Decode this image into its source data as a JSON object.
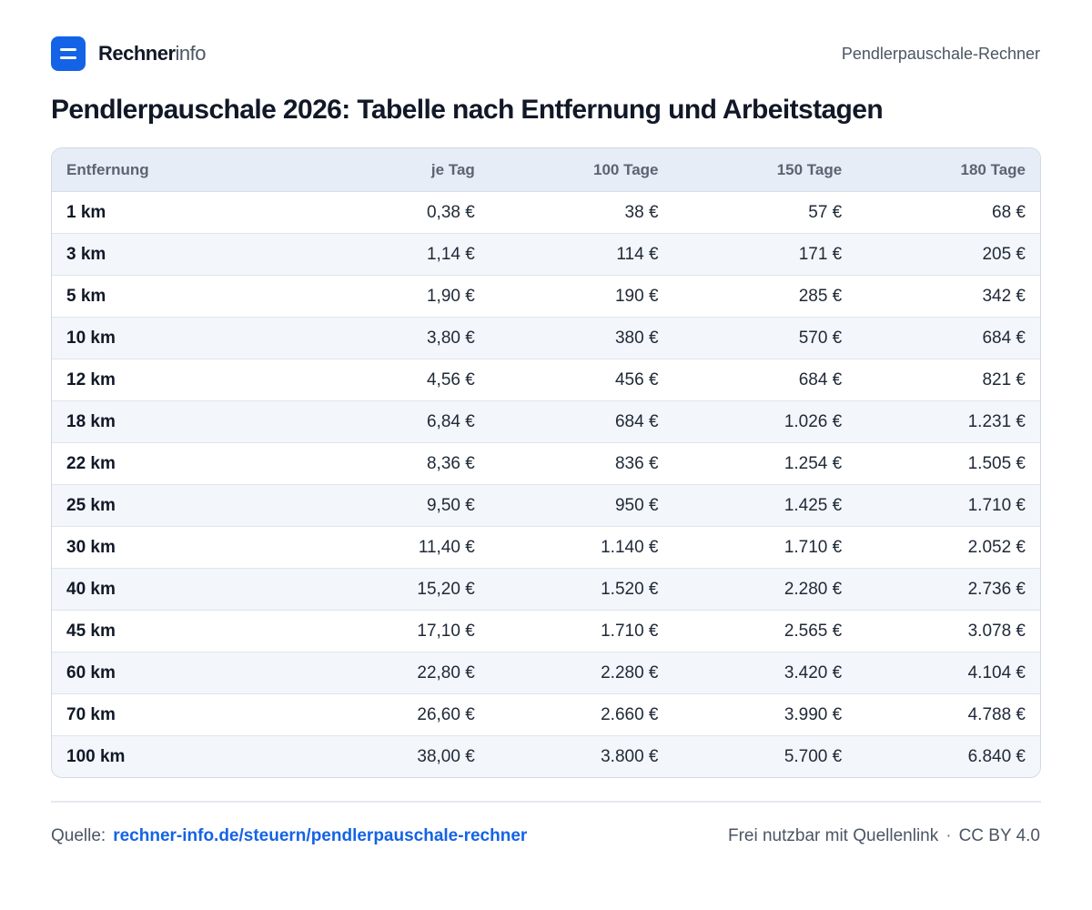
{
  "brand": {
    "name_strong": "Rechner",
    "name_light": "info"
  },
  "header": {
    "right_text": "Pendlerpauschale-Rechner"
  },
  "title": "Pendlerpauschale 2026: Tabelle nach Entfernung und Arbeitstagen",
  "table": {
    "columns": [
      "Entfernung",
      "je Tag",
      "100 Tage",
      "150 Tage",
      "180 Tage"
    ],
    "rows": [
      [
        "1 km",
        "0,38 €",
        "38 €",
        "57 €",
        "68 €"
      ],
      [
        "3 km",
        "1,14 €",
        "114 €",
        "171 €",
        "205 €"
      ],
      [
        "5 km",
        "1,90 €",
        "190 €",
        "285 €",
        "342 €"
      ],
      [
        "10 km",
        "3,80 €",
        "380 €",
        "570 €",
        "684 €"
      ],
      [
        "12 km",
        "4,56 €",
        "456 €",
        "684 €",
        "821 €"
      ],
      [
        "18 km",
        "6,84 €",
        "684 €",
        "1.026 €",
        "1.231 €"
      ],
      [
        "22 km",
        "8,36 €",
        "836 €",
        "1.254 €",
        "1.505 €"
      ],
      [
        "25 km",
        "9,50 €",
        "950 €",
        "1.425 €",
        "1.710 €"
      ],
      [
        "30 km",
        "11,40 €",
        "1.140 €",
        "1.710 €",
        "2.052 €"
      ],
      [
        "40 km",
        "15,20 €",
        "1.520 €",
        "2.280 €",
        "2.736 €"
      ],
      [
        "45 km",
        "17,10 €",
        "1.710 €",
        "2.565 €",
        "3.078 €"
      ],
      [
        "60 km",
        "22,80 €",
        "2.280 €",
        "3.420 €",
        "4.104 €"
      ],
      [
        "70 km",
        "26,60 €",
        "2.660 €",
        "3.990 €",
        "4.788 €"
      ],
      [
        "100 km",
        "38,00 €",
        "3.800 €",
        "5.700 €",
        "6.840 €"
      ]
    ]
  },
  "footer": {
    "source_label": "Quelle:",
    "source_link": "rechner-info.de/steuern/pendlerpauschale-rechner",
    "usage_text": "Frei nutzbar mit Quellenlink",
    "separator": "·",
    "license": "CC BY 4.0"
  },
  "colors": {
    "brand_blue": "#1463e6",
    "header_row_bg": "#e6edf6",
    "stripe_bg": "#f3f6fa"
  }
}
